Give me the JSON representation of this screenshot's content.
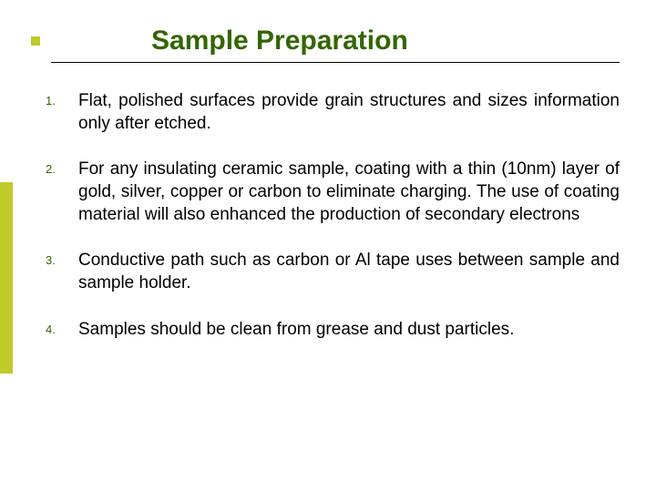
{
  "slide": {
    "title": "Sample Preparation",
    "title_color": "#336600",
    "title_fontsize": 30,
    "title_underline_color": "#000000",
    "accent_color": "#bfca2b",
    "number_color": "#336600",
    "number_fontsize": 13,
    "body_fontsize": 19,
    "body_color": "#000000",
    "background_color": "#ffffff",
    "items": [
      {
        "n": "1.",
        "text": "Flat, polished surfaces provide grain structures and sizes information only after etched."
      },
      {
        "n": "2.",
        "text": "For any insulating ceramic sample, coating with a thin (10nm) layer of gold, silver, copper or carbon to eliminate charging. The  use of coating material will also enhanced the production of secondary electrons"
      },
      {
        "n": "3.",
        "text": "Conductive path such as carbon or Al tape uses between sample and sample holder."
      },
      {
        "n": "4.",
        "text": "Samples should be clean from grease and dust particles."
      }
    ]
  }
}
